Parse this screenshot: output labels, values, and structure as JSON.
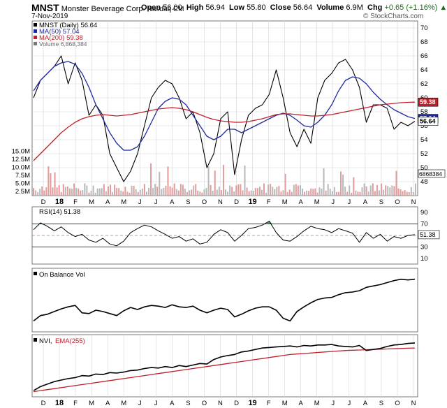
{
  "header": {
    "symbol": "MNST",
    "company": "Monster Beverage Corp.",
    "exchange": "Nasdaq CM",
    "date": "7-Nov-2019",
    "open_label": "Open",
    "open": "56.00",
    "high_label": "High",
    "high": "56.94",
    "low_label": "Low",
    "low": "55.80",
    "close_label": "Close",
    "close": "56.64",
    "volume_label": "Volume",
    "volume": "6.9M",
    "chg_label": "Chg",
    "chg": "+0.65 (+1.16%)",
    "watermark": "© StockCharts.com"
  },
  "colors": {
    "price": "#000000",
    "ma50": "#1f2a9e",
    "ma200": "#c0202a",
    "vol_up": "#b8b8b8",
    "vol_down": "#e39a9a",
    "rsi_fill": "#5a9a5a",
    "grid": "#d6d6d6"
  },
  "chart_data": [
    {
      "type": "line",
      "panel": "price",
      "legend": [
        "MNST (Daily) 56.64",
        "MA(50) 57.04",
        "MA(200) 59.38",
        "Volume 6,868,384"
      ],
      "price_axis": {
        "ylim": [
          46,
          71
        ],
        "ticks": [
          "48",
          "50",
          "52",
          "54",
          "56",
          "58",
          "60",
          "62",
          "64",
          "66",
          "68",
          "70"
        ]
      },
      "volume_axis": {
        "ticks": [
          "2.5M",
          "5.0M",
          "7.5M",
          "10.0M",
          "12.5M",
          "15.0M"
        ]
      },
      "last_labels": {
        "ma200": "59.38",
        "ma50": "57.04",
        "close": "56.64",
        "volume": "6868384"
      },
      "x_labels": [
        "D",
        "18",
        "F",
        "M",
        "A",
        "M",
        "J",
        "J",
        "A",
        "S",
        "O",
        "N",
        "D",
        "19",
        "F",
        "M",
        "A",
        "M",
        "J",
        "J",
        "A",
        "S",
        "O",
        "N"
      ],
      "series": [
        {
          "name": "MNST (Daily) 56.64",
          "key": "close",
          "values": [
            60.0,
            62.5,
            63.5,
            64.5,
            66.0,
            62.0,
            65.0,
            62.5,
            57.5,
            59.0,
            57.5,
            52.0,
            50.0,
            48.0,
            49.5,
            52.0,
            56.0,
            60.0,
            61.5,
            62.5,
            62.0,
            60.0,
            57.0,
            58.0,
            55.0,
            50.0,
            52.0,
            57.0,
            58.0,
            49.0,
            54.0,
            57.5,
            58.5,
            59.0,
            60.5,
            64.0,
            60.0,
            55.0,
            53.0,
            55.5,
            53.5,
            60.0,
            62.5,
            63.5,
            65.0,
            65.5,
            64.0,
            61.5,
            56.5,
            59.0,
            59.0,
            58.5,
            55.5,
            56.5,
            56.0,
            56.64
          ]
        },
        {
          "name": "MA(50) 57.04",
          "key": "ma50",
          "values": [
            61.0,
            62.5,
            63.5,
            64.5,
            65.0,
            65.2,
            64.8,
            63.5,
            61.5,
            59.0,
            57.0,
            55.0,
            53.5,
            52.5,
            52.5,
            53.0,
            54.5,
            56.5,
            58.5,
            59.5,
            60.0,
            59.8,
            59.0,
            57.5,
            56.0,
            54.5,
            54.0,
            54.5,
            55.5,
            55.5,
            55.0,
            55.5,
            56.0,
            56.5,
            57.0,
            57.5,
            57.8,
            57.5,
            56.8,
            56.0,
            55.8,
            56.5,
            57.5,
            59.0,
            61.0,
            62.5,
            63.0,
            62.8,
            62.0,
            60.8,
            59.8,
            59.0,
            58.3,
            57.8,
            57.3,
            57.04
          ]
        },
        {
          "name": "MA(200) 59.38",
          "key": "ma200",
          "values": [
            51.0,
            52.0,
            53.0,
            54.0,
            55.0,
            55.8,
            56.5,
            57.0,
            57.3,
            57.5,
            57.6,
            57.5,
            57.4,
            57.5,
            57.6,
            57.8,
            58.0,
            58.2,
            58.4,
            58.5,
            58.6,
            58.5,
            58.3,
            58.0,
            57.6,
            57.2,
            56.9,
            56.7,
            56.6,
            56.5,
            56.5,
            56.6,
            56.8,
            57.0,
            57.3,
            57.6,
            57.7,
            57.7,
            57.6,
            57.5,
            57.4,
            57.4,
            57.5,
            57.6,
            57.8,
            58.0,
            58.2,
            58.4,
            58.6,
            58.8,
            59.0,
            59.1,
            59.2,
            59.3,
            59.35,
            59.38
          ]
        }
      ]
    },
    {
      "type": "line",
      "panel": "rsi",
      "legend": [
        "RSI(14) 51.38"
      ],
      "ylim": [
        0,
        100
      ],
      "ticks": [
        "90",
        "70",
        "50",
        "30",
        "10"
      ],
      "last_label": "51.38",
      "series": [
        {
          "name": "RSI(14) 51.38",
          "key": "rsi",
          "values": [
            60,
            72,
            66,
            58,
            65,
            55,
            48,
            52,
            42,
            38,
            45,
            35,
            32,
            40,
            55,
            62,
            68,
            65,
            58,
            52,
            45,
            48,
            40,
            44,
            35,
            38,
            52,
            60,
            55,
            40,
            50,
            62,
            64,
            68,
            75,
            55,
            42,
            40,
            48,
            58,
            66,
            62,
            60,
            55,
            62,
            58,
            54,
            38,
            55,
            45,
            52,
            40,
            48,
            45,
            50,
            51.38
          ]
        }
      ]
    },
    {
      "type": "line",
      "panel": "obv",
      "legend": [
        "On Balance Vol"
      ],
      "series": [
        {
          "name": "On Balance Vol",
          "key": "obv",
          "values": [
            10,
            18,
            20,
            24,
            28,
            31,
            33,
            22,
            21,
            26,
            24,
            21,
            18,
            25,
            30,
            27,
            31,
            33,
            32,
            30,
            34,
            31,
            30,
            32,
            26,
            22,
            26,
            29,
            27,
            16,
            20,
            25,
            29,
            31,
            31,
            26,
            14,
            10,
            24,
            31,
            37,
            42,
            44,
            45,
            49,
            52,
            53,
            55,
            60,
            62,
            64,
            67,
            70,
            72,
            71,
            72
          ]
        }
      ]
    },
    {
      "type": "line",
      "panel": "nvi",
      "legend": [
        "NVI,",
        "EMA(255)"
      ],
      "series": [
        {
          "name": "NVI",
          "key": "nvi",
          "values": [
            4,
            12,
            17,
            22,
            25,
            28,
            30,
            34,
            33,
            37,
            36,
            40,
            39,
            41,
            44,
            45,
            48,
            50,
            49,
            52,
            50,
            54,
            52,
            55,
            58,
            57,
            66,
            71,
            74,
            76,
            81,
            83,
            86,
            89,
            90,
            91,
            92,
            93,
            91,
            94,
            93,
            95,
            95,
            96,
            93,
            92,
            91,
            94,
            84,
            86,
            88,
            92,
            95,
            96,
            98,
            99
          ]
        },
        {
          "name": "EMA(255)",
          "key": "nvi_ema",
          "values": [
            2,
            4,
            6,
            8,
            10,
            12,
            14,
            16,
            18,
            20,
            22,
            24,
            26,
            28,
            30,
            32,
            34,
            36,
            38,
            40,
            42,
            44,
            46,
            48,
            50,
            52,
            54,
            56,
            58,
            60,
            62,
            64,
            66,
            68,
            70,
            72,
            74,
            76,
            77,
            78,
            79,
            80,
            81,
            82,
            83,
            84,
            84.5,
            85,
            85.5,
            86,
            86.5,
            87,
            87.5,
            88,
            88.5,
            89
          ]
        }
      ]
    }
  ]
}
